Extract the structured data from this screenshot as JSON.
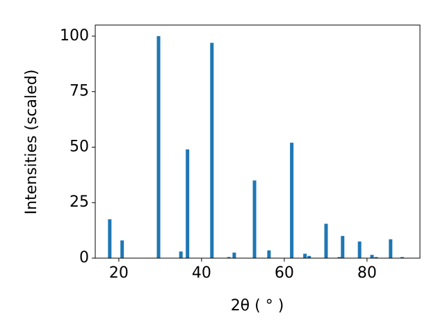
{
  "chart_data": {
    "type": "bar",
    "xlabel": "2θ ( ° )",
    "ylabel": "Intensities (scaled)",
    "x": [
      17.8,
      20.8,
      29.6,
      35.0,
      36.6,
      42.5,
      46.6,
      47.9,
      52.8,
      56.3,
      61.8,
      65.0,
      66.0,
      70.1,
      73.3,
      74.1,
      78.2,
      81.2,
      82.2,
      85.7,
      88.5
    ],
    "values": [
      17.5,
      8,
      100,
      3,
      49,
      97,
      0.5,
      2.5,
      35,
      3.5,
      52,
      2,
      1,
      15.5,
      0.5,
      10,
      7.5,
      1.5,
      0.5,
      8.5,
      0.5
    ],
    "color": "#1f77b4",
    "xlim": [
      14.3,
      92.8
    ],
    "xticks": [
      20,
      40,
      60,
      80
    ],
    "ylim": [
      0,
      105
    ],
    "yticks": [
      0,
      25,
      50,
      75,
      100
    ],
    "grid": false
  }
}
